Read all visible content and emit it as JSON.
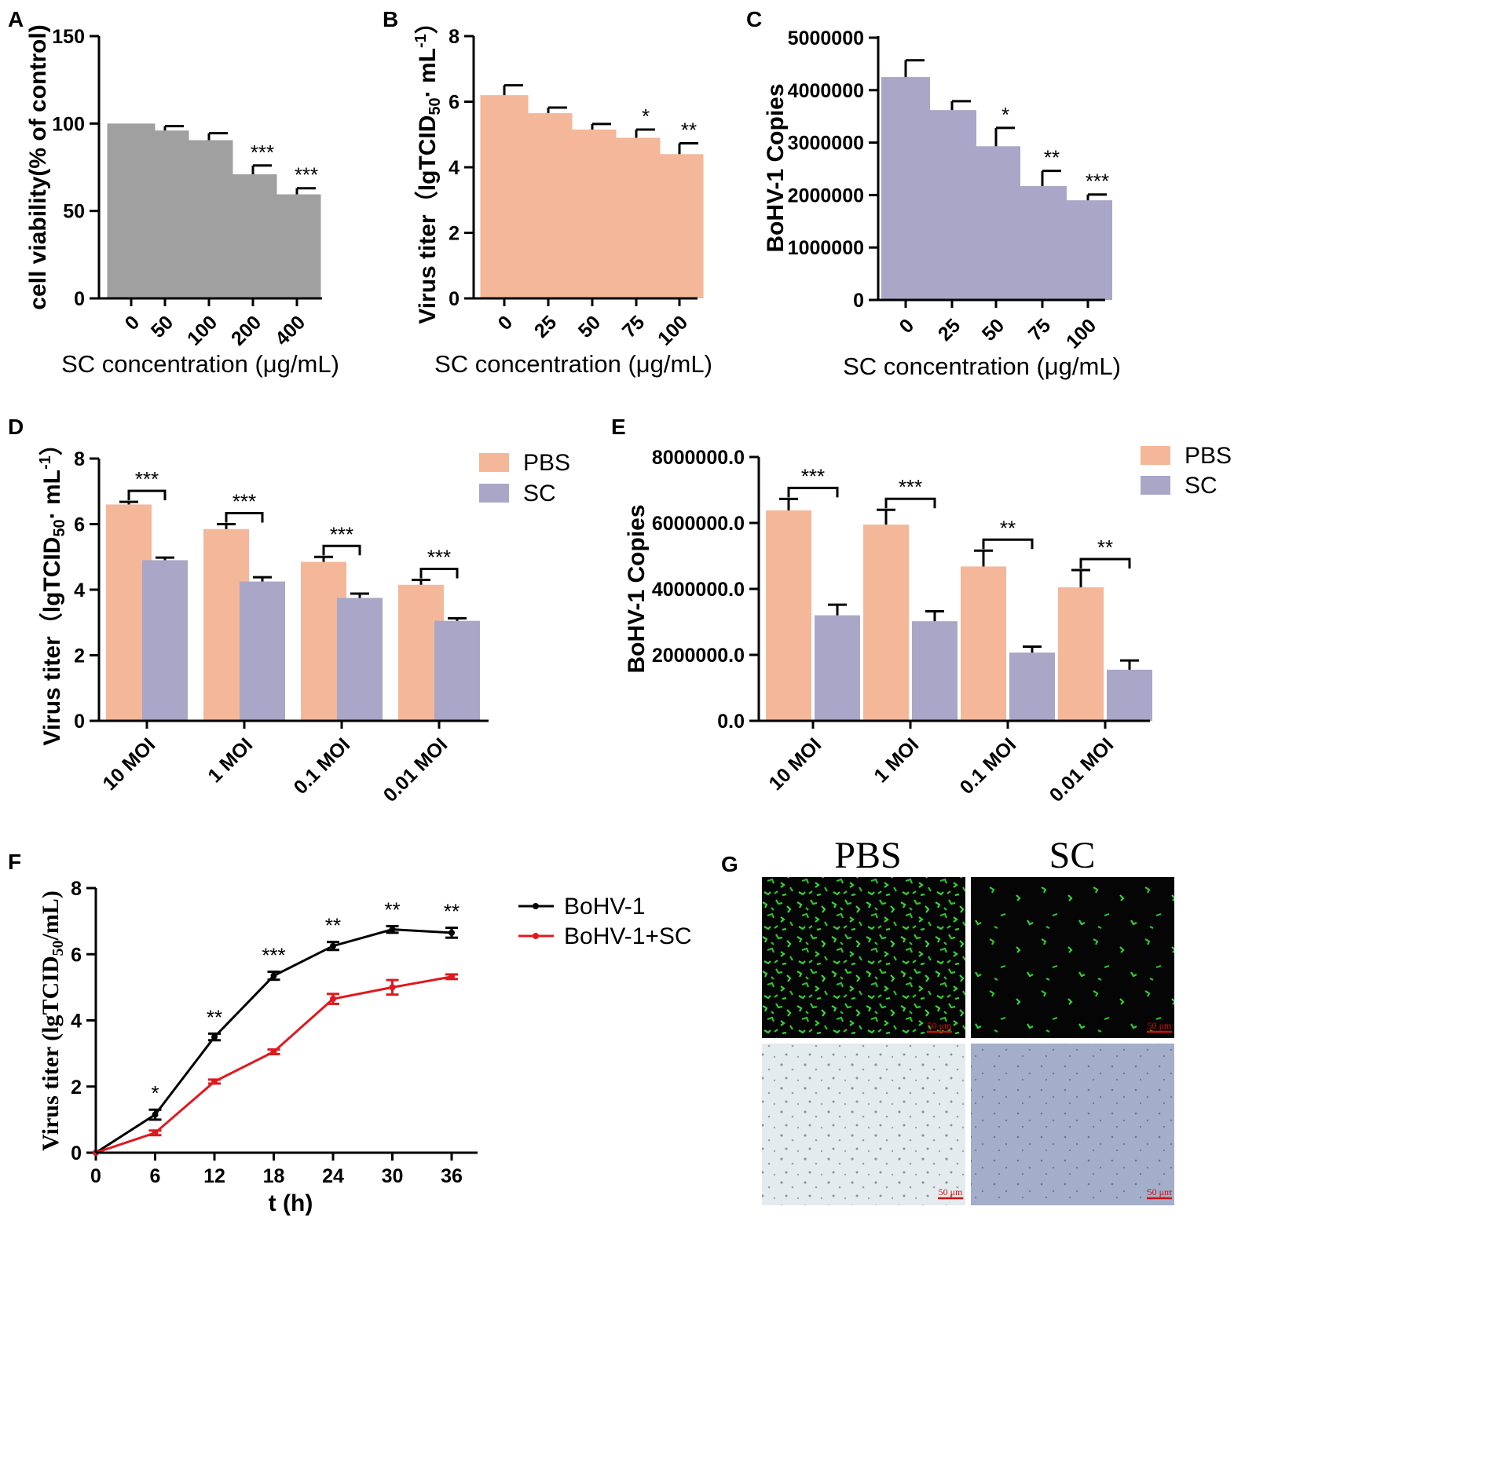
{
  "colors": {
    "grey": "#a0a0a0",
    "salmon": "#f4b79a",
    "lavender": "#a9a6c8",
    "black": "#000000",
    "red": "#e0191f",
    "fluor_bg": "#050505",
    "fluor_cell": "#2ecc2e",
    "bright_a": "#dfe6ea",
    "bright_b": "#9aa6c4"
  },
  "chart_data": [
    {
      "panel": "A",
      "type": "bar",
      "categories": [
        "0",
        "50",
        "100",
        "200",
        "400"
      ],
      "values": [
        100,
        96,
        90.5,
        71,
        59.5
      ],
      "errors": [
        0,
        2.5,
        4,
        5,
        3.5
      ],
      "significance": [
        "",
        "",
        "",
        "***",
        "***"
      ],
      "ylabel": "cell viability(% of control)",
      "xlabel": "SC concentration (μg/mL)",
      "ylim": [
        0,
        150
      ],
      "yticks": [
        "0",
        "50",
        "100",
        "150"
      ],
      "color": "grey"
    },
    {
      "panel": "B",
      "type": "bar",
      "categories": [
        "0",
        "25",
        "50",
        "75",
        "100"
      ],
      "values": [
        6.2,
        5.65,
        5.15,
        4.9,
        4.4
      ],
      "errors": [
        0.3,
        0.17,
        0.17,
        0.25,
        0.33
      ],
      "significance": [
        "",
        "",
        "",
        "*",
        "**"
      ],
      "ylabel": "Virus titer（lgTCID50· mL-1）",
      "xlabel": "SC concentration (μg/mL)",
      "ylim": [
        0,
        8
      ],
      "yticks": [
        "0",
        "2",
        "4",
        "6",
        "8"
      ],
      "color": "salmon"
    },
    {
      "panel": "C",
      "type": "bar",
      "categories": [
        "0",
        "25",
        "50",
        "75",
        "100"
      ],
      "values": [
        4250000,
        3620000,
        2930000,
        2170000,
        1900000
      ],
      "errors": [
        320000,
        170000,
        350000,
        290000,
        110000
      ],
      "significance": [
        "",
        "",
        "*",
        "**",
        "***"
      ],
      "ylabel": "BoHV-1 Copies",
      "xlabel": "SC concentration (μg/mL)",
      "ylim": [
        0,
        5000000
      ],
      "yticks": [
        "0",
        "1000000",
        "2000000",
        "3000000",
        "4000000",
        "5000000"
      ],
      "color": "lavender"
    },
    {
      "panel": "D",
      "type": "bar",
      "categories": [
        "10 MOI",
        "1 MOI",
        "0.1 MOI",
        "0.01 MOI"
      ],
      "series": [
        {
          "name": "PBS",
          "values": [
            6.6,
            5.85,
            4.85,
            4.15
          ],
          "errors": [
            0.08,
            0.15,
            0.15,
            0.15
          ],
          "color": "salmon"
        },
        {
          "name": "SC",
          "values": [
            4.9,
            4.25,
            3.75,
            3.05
          ],
          "errors": [
            0.08,
            0.13,
            0.13,
            0.08
          ],
          "color": "lavender"
        }
      ],
      "significance": [
        "***",
        "***",
        "***",
        "***"
      ],
      "ylabel": "Virus titer（lgTCID50· mL-1）",
      "xlabel": "",
      "ylim": [
        0,
        8
      ],
      "yticks": [
        "0",
        "2",
        "4",
        "6",
        "8"
      ],
      "legend": "top-right"
    },
    {
      "panel": "E",
      "type": "bar",
      "categories": [
        "10 MOI",
        "1 MOI",
        "0.1 MOI",
        "0.01 MOI"
      ],
      "series": [
        {
          "name": "PBS",
          "values": [
            6380000,
            5950000,
            4680000,
            4050000
          ],
          "errors": [
            350000,
            450000,
            480000,
            520000
          ],
          "color": "salmon"
        },
        {
          "name": "SC",
          "values": [
            3200000,
            3020000,
            2070000,
            1550000
          ],
          "errors": [
            320000,
            300000,
            180000,
            280000
          ],
          "color": "lavender"
        }
      ],
      "significance": [
        "***",
        "***",
        "**",
        "**"
      ],
      "ylabel": "BoHV-1 Copies",
      "xlabel": "",
      "ylim": [
        0,
        8000000
      ],
      "yticks": [
        "0.0",
        "2000000.0",
        "4000000.0",
        "6000000.0",
        "8000000.0"
      ],
      "legend": "top-right"
    },
    {
      "panel": "F",
      "type": "line",
      "x": [
        0,
        6,
        12,
        18,
        24,
        30,
        36
      ],
      "series": [
        {
          "name": "BoHV-1",
          "values": [
            0,
            1.15,
            3.5,
            5.35,
            6.25,
            6.75,
            6.65
          ],
          "errors": [
            0,
            0.15,
            0.1,
            0.12,
            0.12,
            0.1,
            0.15
          ],
          "color": "black"
        },
        {
          "name": "BoHV-1+SC",
          "values": [
            0,
            0.6,
            2.15,
            3.05,
            4.65,
            5.0,
            5.32
          ],
          "errors": [
            0,
            0.07,
            0.06,
            0.07,
            0.15,
            0.22,
            0.07
          ],
          "color": "red"
        }
      ],
      "significance": [
        "",
        "*",
        "**",
        "***",
        "**",
        "**",
        "**"
      ],
      "ylabel": "Virus titer (lgTCID50/mL)",
      "xlabel": "t (h)",
      "ylim": [
        0,
        8
      ],
      "xlim": [
        0,
        36
      ],
      "yticks": [
        "0",
        "2",
        "4",
        "6",
        "8"
      ],
      "xticks": [
        "0",
        "6",
        "12",
        "18",
        "24",
        "30",
        "36"
      ],
      "legend": "top-right"
    }
  ],
  "panel_g": {
    "letter": "G",
    "columns": [
      "PBS",
      "SC"
    ],
    "scale_bar": "50 μm"
  }
}
